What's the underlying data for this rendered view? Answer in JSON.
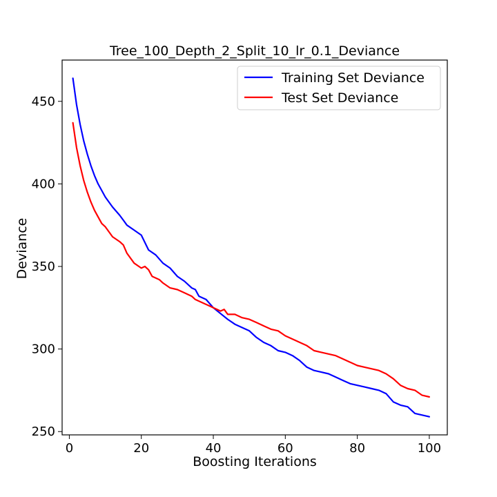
{
  "chart_data": {
    "type": "line",
    "title": "Tree_100_Depth_2_Split_10_lr_0.1_Deviance",
    "xlabel": "Boosting Iterations",
    "ylabel": "Deviance",
    "xlim": [
      -2,
      105
    ],
    "ylim": [
      248,
      475
    ],
    "xticks": [
      0,
      20,
      40,
      60,
      80,
      100
    ],
    "yticks": [
      250,
      300,
      350,
      400,
      450
    ],
    "legend_position": "top-right",
    "grid": false,
    "series": [
      {
        "name": "Training Set Deviance",
        "color": "#0000ff",
        "x": [
          1,
          2,
          3,
          4,
          5,
          6,
          7,
          8,
          9,
          10,
          12,
          14,
          15,
          16,
          18,
          20,
          22,
          24,
          26,
          28,
          30,
          32,
          34,
          35,
          36,
          38,
          40,
          44,
          46,
          48,
          50,
          52,
          54,
          56,
          58,
          60,
          62,
          64,
          66,
          68,
          70,
          72,
          74,
          76,
          78,
          80,
          82,
          84,
          86,
          88,
          90,
          92,
          94,
          96,
          98,
          100
        ],
        "values": [
          464,
          448,
          436,
          426,
          418,
          411,
          405,
          400,
          396,
          392,
          386,
          381,
          378,
          375,
          372,
          369,
          360,
          357,
          352,
          349,
          344,
          341,
          337,
          336,
          332,
          330,
          325,
          318,
          315,
          313,
          311,
          307,
          304,
          302,
          299,
          298,
          296,
          293,
          289,
          287,
          286,
          285,
          283,
          281,
          279,
          278,
          277,
          276,
          275,
          273,
          268,
          266,
          265,
          261,
          260,
          259
        ]
      },
      {
        "name": "Test Set Deviance",
        "color": "#ff0000",
        "x": [
          1,
          2,
          3,
          4,
          5,
          6,
          7,
          8,
          9,
          10,
          12,
          14,
          15,
          16,
          18,
          20,
          21,
          22,
          23,
          24,
          25,
          26,
          28,
          30,
          32,
          34,
          35,
          36,
          38,
          40,
          42,
          43,
          44,
          46,
          48,
          50,
          52,
          54,
          56,
          58,
          60,
          62,
          64,
          66,
          68,
          70,
          72,
          74,
          76,
          78,
          80,
          82,
          84,
          86,
          88,
          90,
          92,
          94,
          96,
          98,
          100
        ],
        "values": [
          437,
          422,
          411,
          402,
          395,
          389,
          384,
          380,
          376,
          374,
          368,
          365,
          363,
          358,
          352,
          349,
          350,
          348,
          344,
          343,
          342,
          340,
          337,
          336,
          334,
          332,
          330,
          329,
          327,
          325,
          323,
          324,
          321,
          321,
          319,
          318,
          316,
          314,
          312,
          311,
          308,
          306,
          304,
          302,
          299,
          298,
          297,
          296,
          294,
          292,
          290,
          289,
          288,
          287,
          285,
          282,
          278,
          276,
          275,
          272,
          271
        ]
      }
    ]
  }
}
